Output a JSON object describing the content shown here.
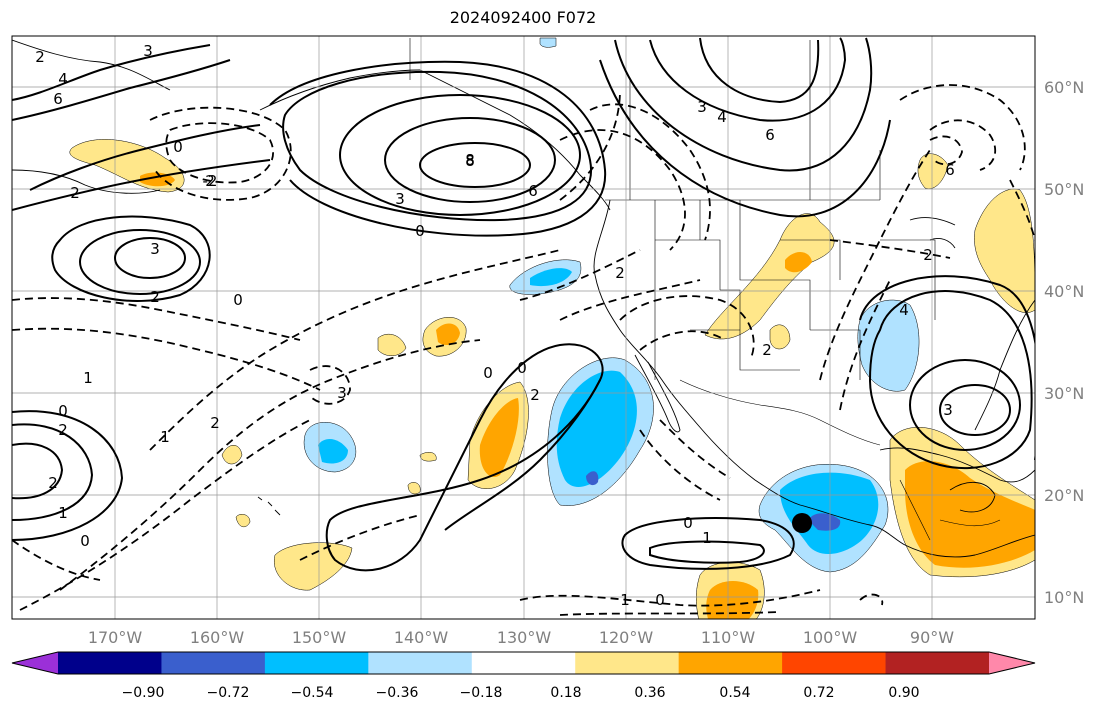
{
  "title": "2024092400 F072",
  "map": {
    "lat_labels": [
      "60°N",
      "50°N",
      "40°N",
      "30°N",
      "20°N",
      "10°N"
    ],
    "lon_labels": [
      "170°W",
      "160°W",
      "150°W",
      "140°W",
      "130°W",
      "120°W",
      "110°W",
      "100°W",
      "90°W"
    ],
    "contour_labels": [
      "2",
      "3",
      "4",
      "6",
      "8",
      "2",
      "3",
      "2",
      "1",
      "0",
      "2",
      "3",
      "6",
      "8",
      "0",
      "2",
      "3",
      "4",
      "6",
      "2",
      "0",
      "2",
      "3",
      "0",
      "-2",
      "1",
      "0",
      "0",
      "2",
      "1",
      "0",
      "1",
      "0",
      "2",
      "2",
      "3",
      "6",
      "4",
      "1",
      "2",
      "0"
    ],
    "marker": "storm-center-dot"
  },
  "colorbar": {
    "ticks": [
      "−0.90",
      "−0.72",
      "−0.54",
      "−0.36",
      "−0.18",
      "0.18",
      "0.36",
      "0.54",
      "0.72",
      "0.90"
    ],
    "colors": [
      "#9b30d8",
      "#00008b",
      "#3a5fcd",
      "#00bfff",
      "#b0e2ff",
      "#ffffff",
      "#ffe78a",
      "#ffa500",
      "#ff4500",
      "#b22222",
      "#ff88aa"
    ]
  }
}
